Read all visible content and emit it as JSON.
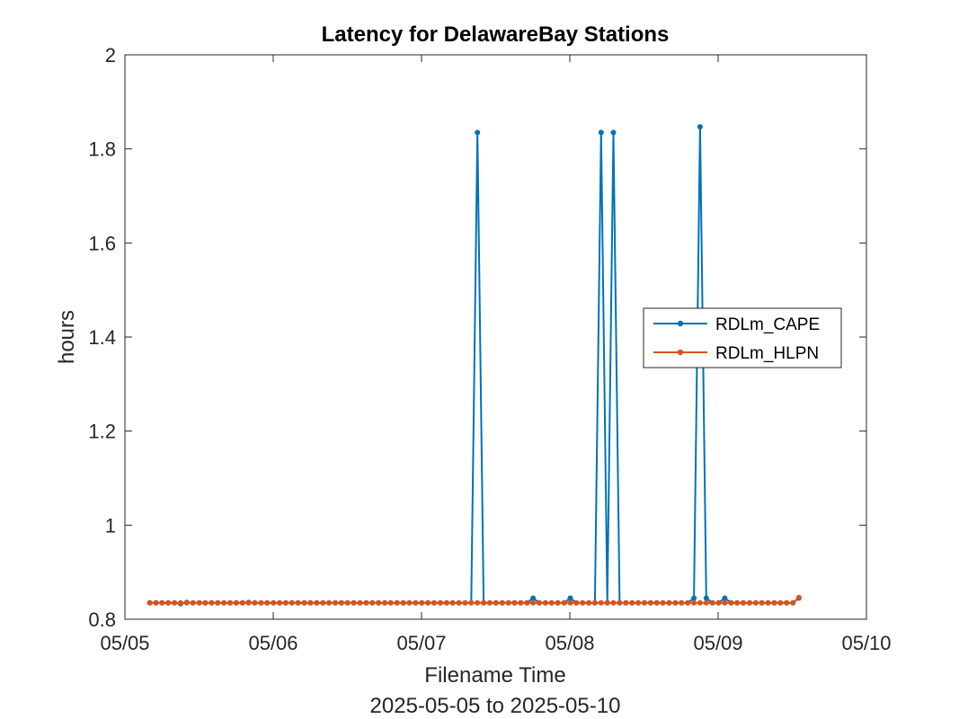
{
  "chart_data": {
    "type": "line",
    "title": "Latency for DelawareBay Stations",
    "xlabel": "Filename Time",
    "xlabel2": "2025-05-05 to 2025-05-10",
    "ylabel": "hours",
    "xlim": [
      0,
      5
    ],
    "ylim": [
      0.8,
      2
    ],
    "x_ticks": [
      0,
      1,
      2,
      3,
      4,
      5
    ],
    "x_tick_labels": [
      "05/05",
      "05/06",
      "05/07",
      "05/08",
      "05/09",
      "05/10"
    ],
    "y_ticks": [
      0.8,
      1,
      1.2,
      1.4,
      1.6,
      1.8,
      2
    ],
    "y_tick_labels": [
      "0.8",
      "1",
      "1.2",
      "1.4",
      "1.6",
      "1.8",
      "2"
    ],
    "grid": false,
    "legend_position": "right",
    "series": [
      {
        "name": "RDLm_CAPE",
        "color": "#0072BD",
        "x_start": 0.167,
        "x_step": 0.0417,
        "y_base": 0.835,
        "points_override": [
          [
            0.375,
            0.833
          ],
          [
            0.417,
            0.836
          ],
          [
            0.833,
            0.836
          ],
          [
            2.333,
            0.835
          ],
          [
            2.375,
            1.835
          ],
          [
            2.417,
            0.835
          ],
          [
            2.75,
            0.845
          ],
          [
            3.0,
            0.845
          ],
          [
            3.167,
            0.835
          ],
          [
            3.208,
            1.835
          ],
          [
            3.25,
            0.835
          ],
          [
            3.292,
            1.835
          ],
          [
            3.333,
            0.835
          ],
          [
            3.833,
            0.845
          ],
          [
            3.875,
            1.847
          ],
          [
            3.917,
            0.845
          ],
          [
            4.042,
            0.845
          ],
          [
            4.542,
            0.845
          ]
        ],
        "x_end": 4.542
      },
      {
        "name": "RDLm_HLPN",
        "color": "#D95319",
        "x_start": 0.167,
        "x_step": 0.0417,
        "y_base": 0.835,
        "points_override": [
          [
            4.542,
            0.846
          ]
        ],
        "x_end": 4.542
      }
    ]
  }
}
